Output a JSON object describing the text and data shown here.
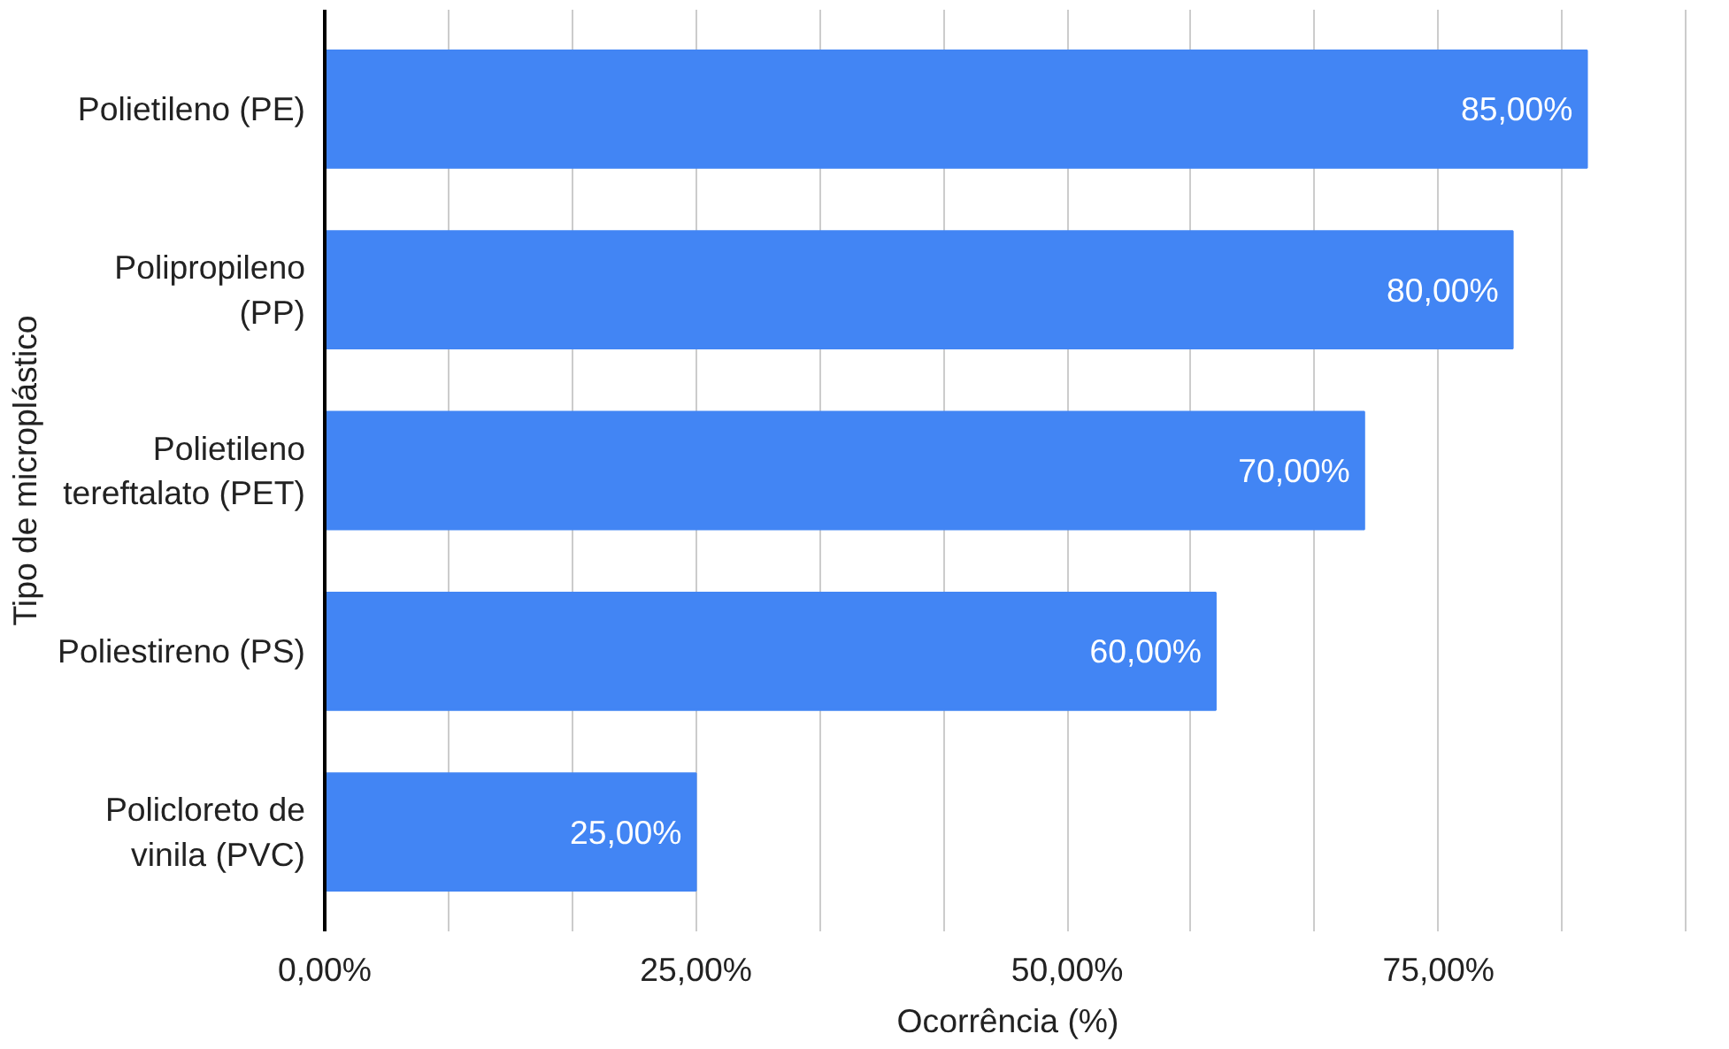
{
  "chart_data": {
    "type": "bar",
    "orientation": "horizontal",
    "xlabel": "Ocorrência (%)",
    "ylabel": "Tipo de microplástico",
    "categories": [
      "Polietileno (PE)",
      "Polipropileno (PP)",
      "Polietileno tereftalato (PET)",
      "Poliestireno (PS)",
      "Policloreto de vinila (PVC)"
    ],
    "values": [
      85,
      80,
      70,
      60,
      25
    ],
    "color": "#4285f4",
    "value_labels": [
      "85,00%",
      "80,00%",
      "70,00%",
      "60,00%",
      "25,00%"
    ],
    "xlim": [
      0,
      92
    ],
    "xticks": [
      {
        "value": 0,
        "label": "0,00%"
      },
      {
        "value": 8.33,
        "label": null
      },
      {
        "value": 16.67,
        "label": null
      },
      {
        "value": 25,
        "label": "25,00%"
      },
      {
        "value": 33.33,
        "label": null
      },
      {
        "value": 41.67,
        "label": null
      },
      {
        "value": 50,
        "label": "50,00%"
      },
      {
        "value": 58.33,
        "label": null
      },
      {
        "value": 66.67,
        "label": null
      },
      {
        "value": 75,
        "label": "75,00%"
      },
      {
        "value": 83.33,
        "label": null
      },
      {
        "value": 91.67,
        "label": null
      }
    ],
    "grid": "x"
  }
}
